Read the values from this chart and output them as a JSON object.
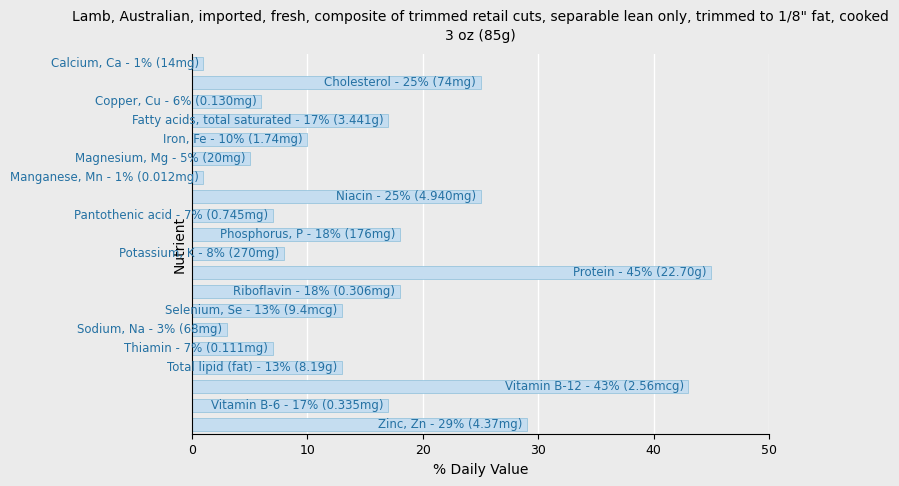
{
  "title": "Lamb, Australian, imported, fresh, composite of trimmed retail cuts, separable lean only, trimmed to 1/8\" fat, cooked\n3 oz (85g)",
  "xlabel": "% Daily Value",
  "ylabel": "Nutrient",
  "xlim": [
    0,
    50
  ],
  "nutrients": [
    "Calcium, Ca - 1% (14mg)",
    "Cholesterol - 25% (74mg)",
    "Copper, Cu - 6% (0.130mg)",
    "Fatty acids, total saturated - 17% (3.441g)",
    "Iron, Fe - 10% (1.74mg)",
    "Magnesium, Mg - 5% (20mg)",
    "Manganese, Mn - 1% (0.012mg)",
    "Niacin - 25% (4.940mg)",
    "Pantothenic acid - 7% (0.745mg)",
    "Phosphorus, P - 18% (176mg)",
    "Potassium, K - 8% (270mg)",
    "Protein - 45% (22.70g)",
    "Riboflavin - 18% (0.306mg)",
    "Selenium, Se - 13% (9.4mcg)",
    "Sodium, Na - 3% (68mg)",
    "Thiamin - 7% (0.111mg)",
    "Total lipid (fat) - 13% (8.19g)",
    "Vitamin B-12 - 43% (2.56mcg)",
    "Vitamin B-6 - 17% (0.335mg)",
    "Zinc, Zn - 29% (4.37mg)"
  ],
  "values": [
    1,
    25,
    6,
    17,
    10,
    5,
    1,
    25,
    7,
    18,
    8,
    45,
    18,
    13,
    3,
    7,
    13,
    43,
    17,
    29
  ],
  "bar_color": "#c5ddf0",
  "bar_edge_color": "#8bbfda",
  "background_color": "#ebebeb",
  "plot_bg_color": "#ebebeb",
  "text_color": "#2471a3",
  "grid_color": "#ffffff",
  "title_fontsize": 10,
  "label_fontsize": 8.5,
  "tick_fontsize": 9,
  "axis_label_fontsize": 10
}
